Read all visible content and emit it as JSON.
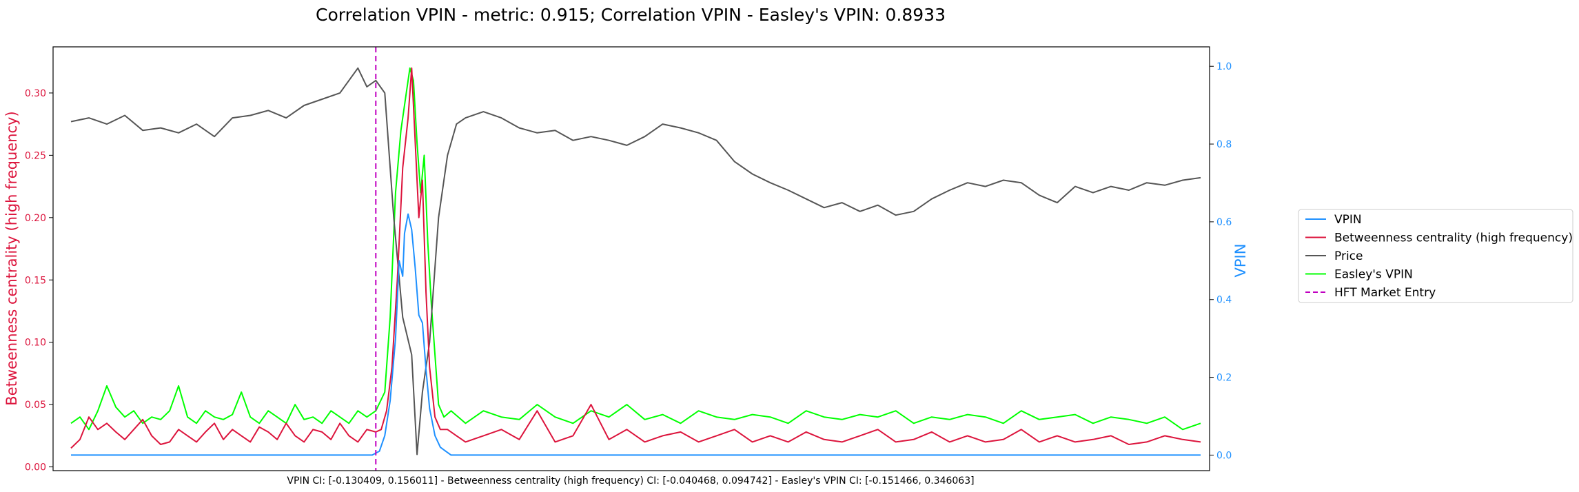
{
  "chart_data": {
    "type": "line",
    "title": "Correlation VPIN - metric: 0.915; Correlation VPIN - Easley's VPIN: 0.8933",
    "xlabel": "VPIN CI: [-0.130409, 0.156011] - Betweenness centrality (high frequency) CI: [-0.040468, 0.094742] - Easley's VPIN CI: [-0.151466, 0.346063]",
    "ylabel_left": "Betweenness centrality (high frequency)",
    "ylabel_right": "VPIN",
    "ylim_left": [
      -0.003,
      0.337
    ],
    "ylim_right": [
      -0.04,
      1.05
    ],
    "xlim": [
      -10,
      635
    ],
    "yticks_left": [
      0.0,
      0.05,
      0.1,
      0.15,
      0.2,
      0.25,
      0.3
    ],
    "yticks_left_labels": [
      "0.00",
      "0.05",
      "0.10",
      "0.15",
      "0.20",
      "0.25",
      "0.30"
    ],
    "yticks_right": [
      0.0,
      0.2,
      0.4,
      0.6,
      0.8,
      1.0
    ],
    "yticks_right_labels": [
      "0.0",
      "0.2",
      "0.4",
      "0.6",
      "0.8",
      "1.0"
    ],
    "grid": false,
    "legend_position": "right, outside plot",
    "vline": {
      "name": "HFT Market Entry",
      "x": 170,
      "color": "#c000c0",
      "style": "dashed"
    },
    "series": [
      {
        "name": "VPIN",
        "axis": "right",
        "color": "#1e90ff",
        "x": [
          0,
          168,
          172,
          175,
          178,
          181,
          183,
          185,
          186,
          188,
          190,
          192,
          194,
          196,
          198,
          200,
          203,
          206,
          209,
          212,
          630
        ],
        "y": [
          0.0,
          0.0,
          0.01,
          0.05,
          0.14,
          0.3,
          0.5,
          0.46,
          0.57,
          0.62,
          0.58,
          0.48,
          0.36,
          0.34,
          0.22,
          0.12,
          0.05,
          0.02,
          0.01,
          0.0,
          0.0
        ]
      },
      {
        "name": "Betweenness centrality (high frequency)",
        "axis": "left",
        "color": "#dc143c",
        "x": [
          0,
          5,
          10,
          15,
          20,
          25,
          30,
          35,
          40,
          45,
          50,
          55,
          60,
          65,
          70,
          75,
          80,
          85,
          90,
          95,
          100,
          105,
          110,
          115,
          120,
          125,
          130,
          135,
          140,
          145,
          150,
          155,
          160,
          165,
          170,
          173,
          176,
          179,
          182,
          185,
          188,
          190,
          192,
          194,
          196,
          198,
          200,
          203,
          206,
          210,
          215,
          220,
          230,
          240,
          250,
          260,
          270,
          280,
          290,
          300,
          310,
          320,
          330,
          340,
          350,
          360,
          370,
          380,
          390,
          400,
          410,
          420,
          430,
          440,
          450,
          460,
          470,
          480,
          490,
          500,
          510,
          520,
          530,
          540,
          550,
          560,
          570,
          580,
          590,
          600,
          610,
          620,
          630
        ],
        "y": [
          0.015,
          0.022,
          0.04,
          0.03,
          0.035,
          0.028,
          0.022,
          0.03,
          0.038,
          0.025,
          0.018,
          0.02,
          0.03,
          0.025,
          0.02,
          0.028,
          0.035,
          0.022,
          0.03,
          0.025,
          0.02,
          0.032,
          0.028,
          0.022,
          0.035,
          0.025,
          0.02,
          0.03,
          0.028,
          0.022,
          0.035,
          0.025,
          0.02,
          0.03,
          0.028,
          0.03,
          0.045,
          0.08,
          0.15,
          0.24,
          0.28,
          0.32,
          0.26,
          0.2,
          0.23,
          0.14,
          0.08,
          0.04,
          0.03,
          0.03,
          0.025,
          0.02,
          0.025,
          0.03,
          0.022,
          0.045,
          0.02,
          0.025,
          0.05,
          0.022,
          0.03,
          0.02,
          0.025,
          0.028,
          0.02,
          0.025,
          0.03,
          0.02,
          0.025,
          0.02,
          0.028,
          0.022,
          0.02,
          0.025,
          0.03,
          0.02,
          0.022,
          0.028,
          0.02,
          0.025,
          0.02,
          0.022,
          0.03,
          0.02,
          0.025,
          0.02,
          0.022,
          0.025,
          0.018,
          0.02,
          0.025,
          0.022,
          0.02
        ]
      },
      {
        "name": "Price",
        "axis": "left",
        "color": "#555555",
        "x": [
          0,
          10,
          20,
          30,
          40,
          50,
          60,
          70,
          80,
          90,
          100,
          110,
          120,
          130,
          140,
          150,
          155,
          160,
          165,
          170,
          175,
          180,
          185,
          190,
          193,
          196,
          200,
          205,
          210,
          215,
          220,
          230,
          240,
          250,
          260,
          270,
          280,
          290,
          300,
          310,
          320,
          330,
          340,
          350,
          360,
          370,
          380,
          390,
          400,
          410,
          420,
          430,
          440,
          450,
          460,
          470,
          480,
          490,
          500,
          510,
          520,
          530,
          540,
          550,
          560,
          570,
          580,
          590,
          600,
          610,
          620,
          630
        ],
        "y": [
          0.277,
          0.28,
          0.275,
          0.282,
          0.27,
          0.272,
          0.268,
          0.275,
          0.265,
          0.28,
          0.282,
          0.286,
          0.28,
          0.29,
          0.295,
          0.3,
          0.31,
          0.32,
          0.305,
          0.31,
          0.3,
          0.2,
          0.12,
          0.09,
          0.01,
          0.06,
          0.1,
          0.2,
          0.25,
          0.275,
          0.28,
          0.285,
          0.28,
          0.272,
          0.268,
          0.27,
          0.262,
          0.265,
          0.262,
          0.258,
          0.265,
          0.275,
          0.272,
          0.268,
          0.262,
          0.245,
          0.235,
          0.228,
          0.222,
          0.215,
          0.208,
          0.212,
          0.205,
          0.21,
          0.202,
          0.205,
          0.215,
          0.222,
          0.228,
          0.225,
          0.23,
          0.228,
          0.218,
          0.212,
          0.225,
          0.22,
          0.225,
          0.222,
          0.228,
          0.226,
          0.23,
          0.232
        ]
      },
      {
        "name": "Easley's VPIN",
        "axis": "left",
        "color": "#00ff00",
        "x": [
          0,
          5,
          10,
          15,
          20,
          25,
          30,
          35,
          40,
          45,
          50,
          55,
          60,
          65,
          70,
          75,
          80,
          85,
          90,
          95,
          100,
          105,
          110,
          115,
          120,
          125,
          130,
          135,
          140,
          145,
          150,
          155,
          160,
          165,
          170,
          175,
          178,
          181,
          184,
          187,
          189,
          191,
          193,
          195,
          197,
          199,
          201,
          203,
          205,
          208,
          212,
          216,
          220,
          230,
          240,
          250,
          260,
          270,
          280,
          290,
          300,
          310,
          320,
          330,
          340,
          350,
          360,
          370,
          380,
          390,
          400,
          410,
          420,
          430,
          440,
          450,
          460,
          470,
          480,
          490,
          500,
          510,
          520,
          530,
          540,
          550,
          560,
          570,
          580,
          590,
          600,
          610,
          620,
          630
        ],
        "y": [
          0.035,
          0.04,
          0.03,
          0.045,
          0.065,
          0.048,
          0.04,
          0.045,
          0.035,
          0.04,
          0.038,
          0.045,
          0.065,
          0.04,
          0.035,
          0.045,
          0.04,
          0.038,
          0.042,
          0.06,
          0.04,
          0.035,
          0.045,
          0.04,
          0.035,
          0.05,
          0.038,
          0.04,
          0.035,
          0.045,
          0.04,
          0.035,
          0.045,
          0.04,
          0.045,
          0.06,
          0.12,
          0.22,
          0.27,
          0.3,
          0.32,
          0.31,
          0.26,
          0.22,
          0.25,
          0.18,
          0.13,
          0.09,
          0.05,
          0.04,
          0.045,
          0.04,
          0.035,
          0.045,
          0.04,
          0.038,
          0.05,
          0.04,
          0.035,
          0.045,
          0.04,
          0.05,
          0.038,
          0.042,
          0.035,
          0.045,
          0.04,
          0.038,
          0.042,
          0.04,
          0.035,
          0.045,
          0.04,
          0.038,
          0.042,
          0.04,
          0.045,
          0.035,
          0.04,
          0.038,
          0.042,
          0.04,
          0.035,
          0.045,
          0.038,
          0.04,
          0.042,
          0.035,
          0.04,
          0.038,
          0.035,
          0.04,
          0.03,
          0.035
        ]
      }
    ]
  }
}
